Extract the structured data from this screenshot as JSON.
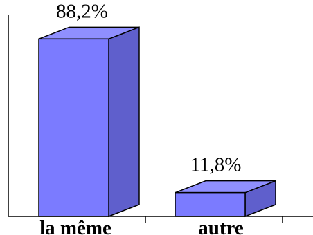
{
  "chart_data": {
    "type": "bar",
    "style": "3d-column",
    "categories": [
      "la même",
      "autre"
    ],
    "values": [
      88.2,
      11.8
    ],
    "data_labels": [
      "88,2%",
      "11,8%"
    ],
    "title": "",
    "xlabel": "",
    "ylabel": "",
    "ylim": [
      0,
      100
    ],
    "grid": false,
    "legend": "none",
    "colors": {
      "front": "#7b7bff",
      "side": "#5f5fcc",
      "top": "#8f8fff",
      "stroke": "#000000"
    }
  }
}
